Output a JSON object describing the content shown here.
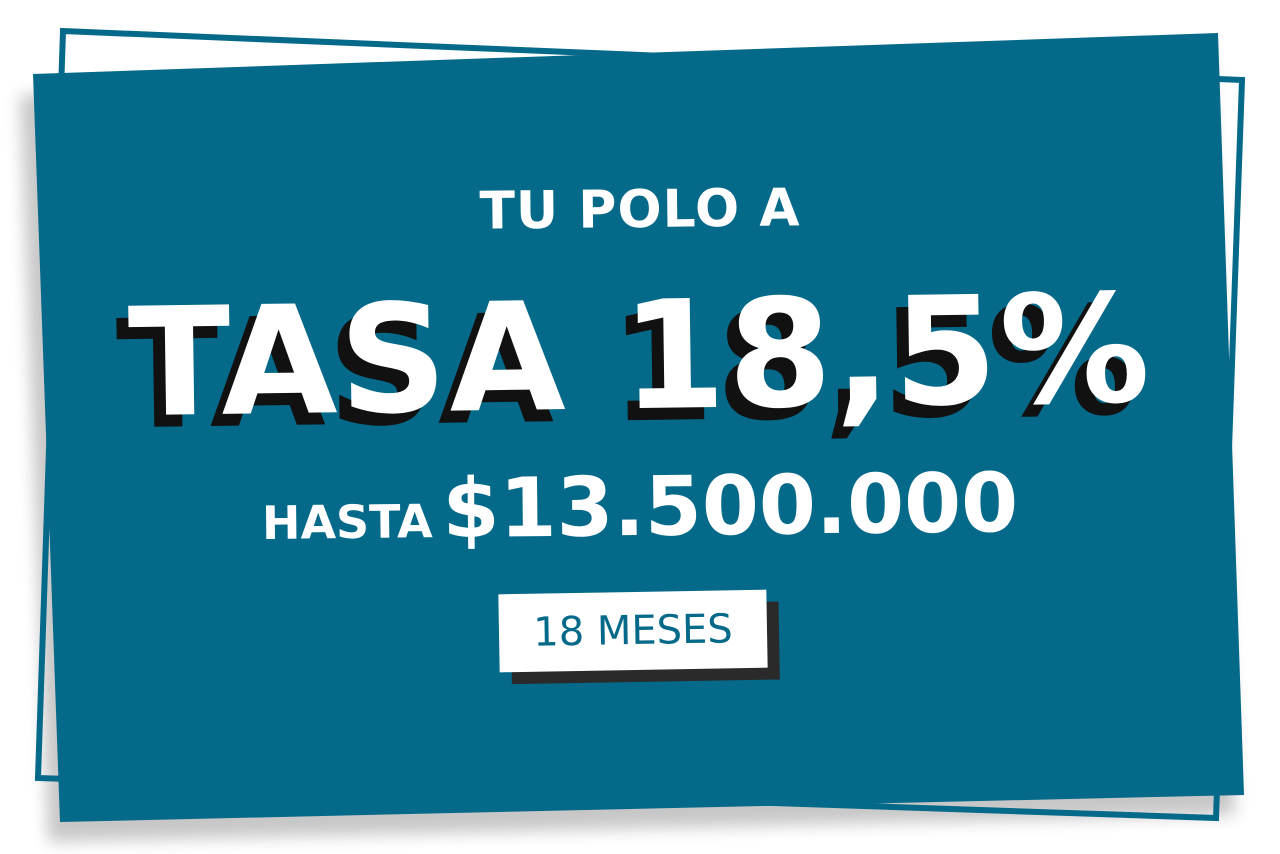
{
  "colors": {
    "card": "#05698a",
    "text": "#ffffff",
    "shadow": "#111111"
  },
  "headline_top": "TU POLO A",
  "headline_main": "TASA 18,5%",
  "amount_prefix": "HASTA",
  "amount": "$13.500.000",
  "term_badge": "18 MESES"
}
